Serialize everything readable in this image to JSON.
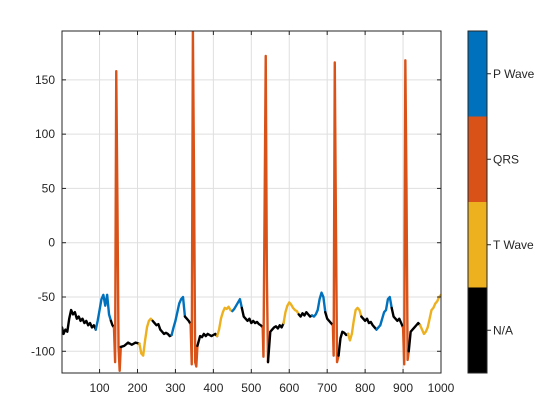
{
  "chart_data": {
    "type": "line",
    "title": "",
    "xlabel": "",
    "ylabel": "",
    "xlim": [
      1,
      1000
    ],
    "ylim": [
      -120,
      195
    ],
    "grid": true,
    "x_ticks": [
      100,
      200,
      300,
      400,
      500,
      600,
      700,
      800,
      900,
      1000
    ],
    "y_ticks": [
      -100,
      -50,
      0,
      50,
      100,
      150
    ],
    "colorbar": {
      "placement": "right",
      "categories": [
        {
          "label": "P Wave",
          "color": "#0072BD"
        },
        {
          "label": "QRS",
          "color": "#D95319"
        },
        {
          "label": "T Wave",
          "color": "#EDB120"
        },
        {
          "label": "N/A",
          "color": "#000000"
        }
      ]
    },
    "series": [
      {
        "region": "N/A",
        "x": [
          1,
          5,
          10,
          15,
          20,
          25,
          30,
          35,
          40,
          45,
          50,
          55,
          60,
          65,
          70,
          75,
          80,
          85,
          90
        ],
        "y": [
          -78,
          -84,
          -80,
          -82,
          -70,
          -62,
          -66,
          -64,
          -70,
          -68,
          -72,
          -70,
          -74,
          -72,
          -76,
          -74,
          -78,
          -76,
          -80
        ]
      },
      {
        "region": "P Wave",
        "x": [
          90,
          95,
          100,
          105,
          110,
          115,
          120,
          125,
          130
        ],
        "y": [
          -80,
          -72,
          -62,
          -52,
          -48,
          -58,
          -48,
          -66,
          -72
        ]
      },
      {
        "region": "N/A",
        "x": [
          130,
          134,
          138
        ],
        "y": [
          -72,
          -76,
          -78
        ]
      },
      {
        "region": "QRS",
        "x": [
          138,
          141,
          144,
          147,
          150,
          153,
          156
        ],
        "y": [
          -78,
          -110,
          158,
          40,
          -96,
          -118,
          -96
        ]
      },
      {
        "region": "N/A",
        "x": [
          156,
          165,
          175,
          185,
          195,
          205
        ],
        "y": [
          -96,
          -95,
          -92,
          -94,
          -92,
          -93
        ]
      },
      {
        "region": "T Wave",
        "x": [
          205,
          210,
          215,
          220,
          225,
          230,
          235,
          240
        ],
        "y": [
          -93,
          -102,
          -104,
          -90,
          -78,
          -72,
          -70,
          -72
        ]
      },
      {
        "region": "N/A",
        "x": [
          240,
          245,
          250,
          255,
          260,
          265,
          270,
          275,
          280,
          285,
          290
        ],
        "y": [
          -72,
          -74,
          -76,
          -75,
          -80,
          -82,
          -84,
          -83,
          -84,
          -86,
          -85
        ]
      },
      {
        "region": "P Wave",
        "x": [
          290,
          295,
          300,
          305,
          310,
          315,
          320,
          325
        ],
        "y": [
          -85,
          -78,
          -72,
          -64,
          -56,
          -52,
          -50,
          -68
        ]
      },
      {
        "region": "N/A",
        "x": [
          325,
          330,
          335,
          340
        ],
        "y": [
          -68,
          -70,
          -72,
          -75
        ]
      },
      {
        "region": "QRS",
        "x": [
          340,
          343,
          346,
          349,
          352,
          355,
          358
        ],
        "y": [
          -75,
          -112,
          195,
          60,
          -110,
          -114,
          -95
        ]
      },
      {
        "region": "N/A",
        "x": [
          358,
          365,
          370,
          375,
          380,
          385,
          390,
          395,
          400,
          405,
          410
        ],
        "y": [
          -95,
          -86,
          -87,
          -84,
          -86,
          -84,
          -85,
          -86,
          -85,
          -84,
          -86
        ]
      },
      {
        "region": "T Wave",
        "x": [
          410,
          415,
          420,
          425,
          430,
          435,
          440,
          445,
          450
        ],
        "y": [
          -86,
          -80,
          -70,
          -64,
          -60,
          -61,
          -59,
          -62,
          -63
        ]
      },
      {
        "region": "P Wave",
        "x": [
          450,
          455,
          460,
          465,
          470,
          475
        ],
        "y": [
          -63,
          -61,
          -58,
          -55,
          -52,
          -60
        ]
      },
      {
        "region": "N/A",
        "x": [
          475,
          480,
          485,
          490,
          495,
          500,
          505,
          510,
          515,
          520,
          525,
          530
        ],
        "y": [
          -60,
          -68,
          -70,
          -72,
          -70,
          -74,
          -72,
          -74,
          -73,
          -75,
          -76,
          -78
        ]
      },
      {
        "region": "QRS",
        "x": [
          530,
          532,
          535,
          538,
          541,
          544
        ],
        "y": [
          -78,
          -105,
          30,
          172,
          -30,
          -110
        ]
      },
      {
        "region": "N/A",
        "x": [
          544,
          550,
          555,
          560,
          565,
          570,
          575,
          580,
          585
        ],
        "y": [
          -110,
          -82,
          -80,
          -78,
          -77,
          -79,
          -76,
          -78,
          -74
        ]
      },
      {
        "region": "T Wave",
        "x": [
          585,
          590,
          595,
          600,
          605,
          610,
          615,
          620,
          625
        ],
        "y": [
          -74,
          -64,
          -58,
          -55,
          -57,
          -60,
          -62,
          -63,
          -66
        ]
      },
      {
        "region": "N/A",
        "x": [
          625,
          630,
          635,
          640,
          645,
          650,
          655,
          660
        ],
        "y": [
          -66,
          -68,
          -65,
          -67,
          -64,
          -66,
          -68,
          -67
        ]
      },
      {
        "region": "P Wave",
        "x": [
          660,
          665,
          670,
          675,
          680,
          685,
          690,
          695
        ],
        "y": [
          -67,
          -68,
          -66,
          -62,
          -52,
          -46,
          -50,
          -64
        ]
      },
      {
        "region": "N/A",
        "x": [
          695,
          700,
          705,
          710,
          715
        ],
        "y": [
          -64,
          -70,
          -72,
          -74,
          -76
        ]
      },
      {
        "region": "QRS",
        "x": [
          715,
          717,
          720,
          723,
          726,
          730
        ],
        "y": [
          -76,
          -104,
          166,
          20,
          -110,
          -104
        ]
      },
      {
        "region": "N/A",
        "x": [
          730,
          735,
          740,
          745,
          750,
          755
        ],
        "y": [
          -104,
          -88,
          -82,
          -83,
          -85,
          -84
        ]
      },
      {
        "region": "T Wave",
        "x": [
          755,
          760,
          765,
          770,
          775,
          780,
          785,
          790
        ],
        "y": [
          -84,
          -90,
          -84,
          -72,
          -62,
          -60,
          -62,
          -68
        ]
      },
      {
        "region": "N/A",
        "x": [
          790,
          795,
          800,
          805,
          810,
          815,
          820,
          825,
          830
        ],
        "y": [
          -68,
          -70,
          -72,
          -70,
          -74,
          -73,
          -76,
          -78,
          -80
        ]
      },
      {
        "region": "P Wave",
        "x": [
          830,
          835,
          840,
          845,
          850,
          855,
          860,
          865,
          870
        ],
        "y": [
          -80,
          -78,
          -76,
          -70,
          -64,
          -62,
          -52,
          -50,
          -60
        ]
      },
      {
        "region": "N/A",
        "x": [
          870,
          875,
          880,
          885,
          890,
          895,
          900
        ],
        "y": [
          -60,
          -68,
          -70,
          -72,
          -70,
          -74,
          -78
        ]
      },
      {
        "region": "QRS",
        "x": [
          900,
          903,
          906,
          909,
          912,
          915
        ],
        "y": [
          -78,
          -112,
          168,
          50,
          -108,
          -100
        ]
      },
      {
        "region": "N/A",
        "x": [
          915,
          920,
          925,
          930,
          935,
          940,
          945
        ],
        "y": [
          -100,
          -82,
          -80,
          -78,
          -76,
          -74,
          -76
        ]
      },
      {
        "region": "T Wave",
        "x": [
          945,
          950,
          955,
          960,
          965,
          970,
          975,
          980,
          985,
          990,
          995,
          1000
        ],
        "y": [
          -76,
          -80,
          -84,
          -82,
          -78,
          -70,
          -62,
          -60,
          -56,
          -54,
          -50,
          -48
        ]
      }
    ]
  }
}
